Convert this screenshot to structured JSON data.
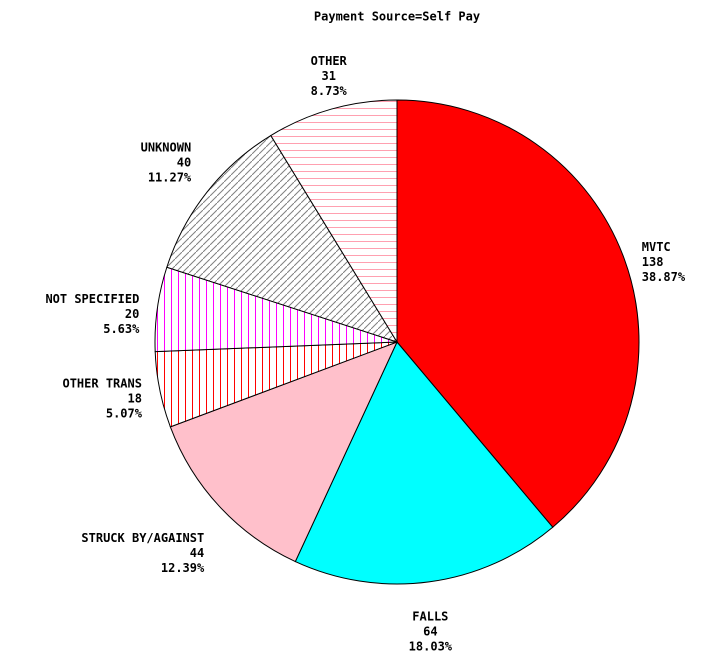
{
  "chart_data": {
    "type": "pie",
    "title": "Payment Source=Self Pay",
    "categories": [
      "MVTC",
      "FALLS",
      "STRUCK BY/AGAINST",
      "OTHER TRANS",
      "NOT SPECIFIED",
      "UNKNOWN",
      "OTHER"
    ],
    "values": [
      138,
      64,
      44,
      18,
      20,
      40,
      31
    ],
    "percents": [
      38.87,
      18.03,
      12.39,
      5.07,
      5.63,
      11.27,
      8.73
    ],
    "percent_labels": [
      "38.87%",
      "18.03%",
      "12.39%",
      "5.07%",
      "5.63%",
      "11.27%",
      "8.73%"
    ],
    "colors": [
      "#ff0000",
      "#00ffff",
      "#ffc0cb",
      "#ff0000",
      "#ff00ff",
      "#808080",
      "#ffa0b0"
    ],
    "patterns": [
      "solid",
      "solid",
      "solid",
      "vertical",
      "vertical",
      "diagonal",
      "horizontal"
    ]
  }
}
